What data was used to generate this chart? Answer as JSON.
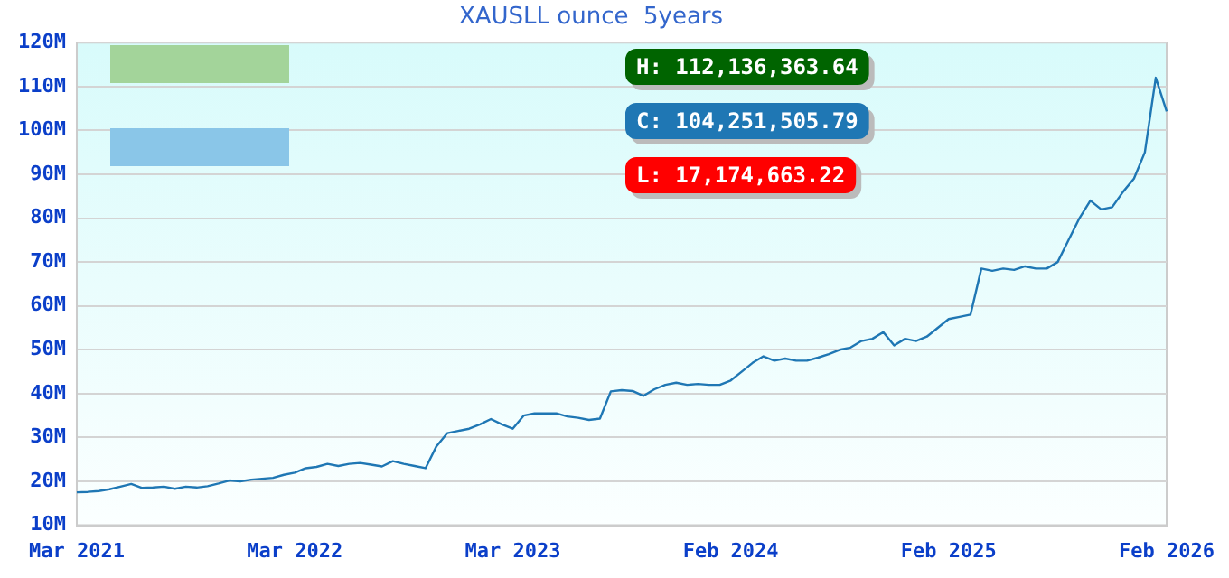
{
  "chart_data": {
    "type": "line",
    "title": "XAUSLL ounce  5years",
    "categories": [
      "Mar 2021",
      null,
      null,
      null,
      null,
      null,
      null,
      null,
      null,
      null,
      null,
      null,
      null,
      null,
      null,
      null,
      null,
      null,
      null,
      null,
      "Mar 2022",
      null,
      null,
      null,
      null,
      null,
      null,
      null,
      null,
      null,
      null,
      null,
      null,
      null,
      null,
      null,
      null,
      null,
      null,
      null,
      "Mar 2023",
      null,
      null,
      null,
      null,
      null,
      null,
      null,
      null,
      null,
      null,
      null,
      null,
      null,
      null,
      null,
      null,
      null,
      null,
      null,
      "Feb 2024",
      null,
      null,
      null,
      null,
      null,
      null,
      null,
      null,
      null,
      null,
      null,
      null,
      null,
      null,
      null,
      null,
      null,
      null,
      null,
      "Feb 2025",
      null,
      null,
      null,
      null,
      null,
      null,
      null,
      null,
      null,
      null,
      null,
      null,
      null,
      null,
      null,
      null,
      null,
      null,
      null,
      "Feb 2026"
    ],
    "series": [
      {
        "color": "#1f77b4",
        "values": [
          17.5,
          17.6,
          17.8,
          18.2,
          18.8,
          19.4,
          18.5,
          18.6,
          18.8,
          18.3,
          18.8,
          18.6,
          18.9,
          19.5,
          20.2,
          20.0,
          20.4,
          20.6,
          20.8,
          21.5,
          22.0,
          23.0,
          23.3,
          24.0,
          23.5,
          24.0,
          24.2,
          23.8,
          23.4,
          24.6,
          24.0,
          23.5,
          23.0,
          28.0,
          31.0,
          31.5,
          32.0,
          33.0,
          34.2,
          33.0,
          32.0,
          35.0,
          35.5,
          35.5,
          35.5,
          34.8,
          34.5,
          34.0,
          34.3,
          40.5,
          40.8,
          40.6,
          39.5,
          41.0,
          42.0,
          42.5,
          42.0,
          42.2,
          42.0,
          42.0,
          43.0,
          45.0,
          47.0,
          48.5,
          47.5,
          48.0,
          47.5,
          47.5,
          48.2,
          49.0,
          50.0,
          50.5,
          52.0,
          52.5,
          54.0,
          51.0,
          52.5,
          52.0,
          53.0,
          55.0,
          57.0,
          57.5,
          58.0,
          68.5,
          68.0,
          68.5,
          68.2,
          69.0,
          68.5,
          68.5,
          70.0,
          75.0,
          80.0,
          84.0,
          82.0,
          82.5,
          86.0,
          89.0,
          95.0,
          112.0,
          104.3
        ]
      }
    ],
    "ylim": [
      10,
      120
    ],
    "yticks": [
      {
        "value": 10,
        "label": "10M"
      },
      {
        "value": 20,
        "label": "20M"
      },
      {
        "value": 30,
        "label": "30M"
      },
      {
        "value": 40,
        "label": "40M"
      },
      {
        "value": 50,
        "label": "50M"
      },
      {
        "value": 60,
        "label": "60M"
      },
      {
        "value": 70,
        "label": "70M"
      },
      {
        "value": 80,
        "label": "80M"
      },
      {
        "value": 90,
        "label": "90M"
      },
      {
        "value": 100,
        "label": "100M"
      },
      {
        "value": 110,
        "label": "110M"
      },
      {
        "value": 120,
        "label": "120M"
      }
    ],
    "grid": "y",
    "legend": false,
    "marker": "none",
    "line_style": "solid",
    "annotations": [
      "H: 112,136,363.64",
      "C: 104,251,505.79",
      "L: 17,174,663.22"
    ]
  }
}
